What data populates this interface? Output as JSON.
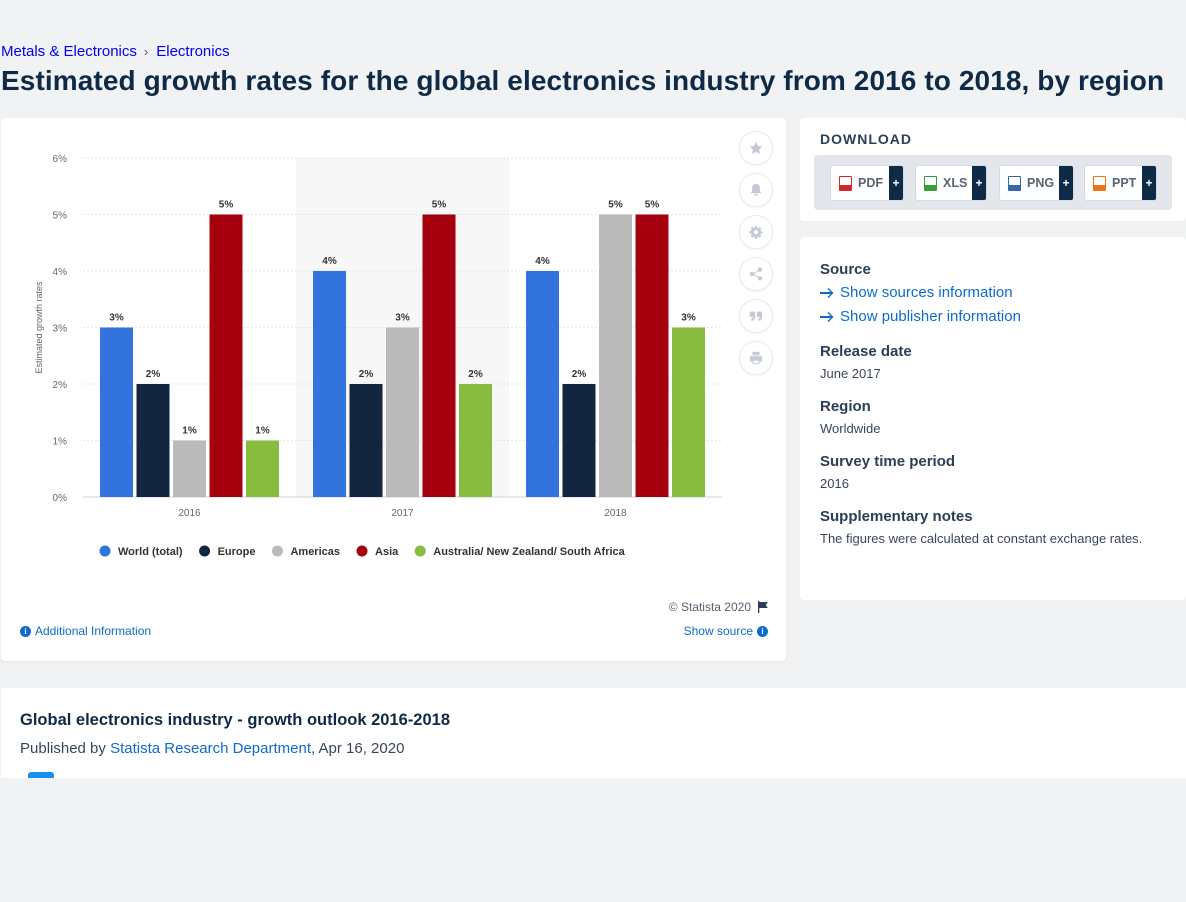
{
  "breadcrumb": {
    "parent": "Metals & Electronics",
    "separator": "›",
    "current": "Electronics"
  },
  "page_title": "Estimated growth rates for the global electronics industry from 2016 to 2018, by region",
  "tools": {
    "icons": [
      "star-icon",
      "bell-icon",
      "gear-icon",
      "share-icon",
      "quote-icon",
      "print-icon"
    ]
  },
  "chart_footer": {
    "copyright": "© Statista 2020",
    "additional_info": "Additional Information",
    "show_source": "Show source"
  },
  "download": {
    "title": "DOWNLOAD",
    "buttons": [
      {
        "label": "PDF",
        "color": "#d3282b",
        "plus": "+"
      },
      {
        "label": "XLS",
        "color": "#3a9b3a",
        "plus": "+"
      },
      {
        "label": "PNG",
        "color": "#3366aa",
        "plus": "+"
      },
      {
        "label": "PPT",
        "color": "#e8771c",
        "plus": "+"
      }
    ]
  },
  "info": {
    "source_heading": "Source",
    "sources_link": "Show sources information",
    "publisher_link": "Show publisher information",
    "release_heading": "Release date",
    "release_value": "June 2017",
    "region_heading": "Region",
    "region_value": "Worldwide",
    "survey_heading": "Survey time period",
    "survey_value": "2016",
    "notes_heading": "Supplementary notes",
    "notes_value": "The figures were calculated at constant exchange rates."
  },
  "outlook": {
    "title": "Global electronics industry - growth outlook 2016-2018",
    "published_prefix": "Published by",
    "author": "Statista Research Department",
    "date": ", Apr 16, 2020"
  },
  "chart_data": {
    "type": "bar",
    "ylabel": "Estimated growth rates",
    "xlabel": "",
    "categories": [
      "2016",
      "2017",
      "2018"
    ],
    "ylim": [
      0,
      6
    ],
    "yticks": [
      "0%",
      "1%",
      "2%",
      "3%",
      "4%",
      "5%",
      "6%"
    ],
    "grid": true,
    "legend_position": "bottom",
    "series": [
      {
        "name": "World (total)",
        "color": "#3373dd",
        "values": [
          3,
          4,
          4
        ],
        "labels": [
          "3%",
          "4%",
          "4%"
        ]
      },
      {
        "name": "Europe",
        "color": "#12263f",
        "values": [
          2,
          2,
          2
        ],
        "labels": [
          "2%",
          "2%",
          "2%"
        ]
      },
      {
        "name": "Americas",
        "color": "#bbbbbb",
        "values": [
          1,
          3,
          5
        ],
        "labels": [
          "1%",
          "3%",
          "5%"
        ]
      },
      {
        "name": "Asia",
        "color": "#a5000e",
        "values": [
          5,
          5,
          5
        ],
        "labels": [
          "5%",
          "5%",
          "5%"
        ]
      },
      {
        "name": "Australia/ New Zealand/ South Africa",
        "color": "#87bc3f",
        "values": [
          1,
          2,
          3
        ],
        "labels": [
          "1%",
          "2%",
          "3%"
        ]
      }
    ]
  }
}
